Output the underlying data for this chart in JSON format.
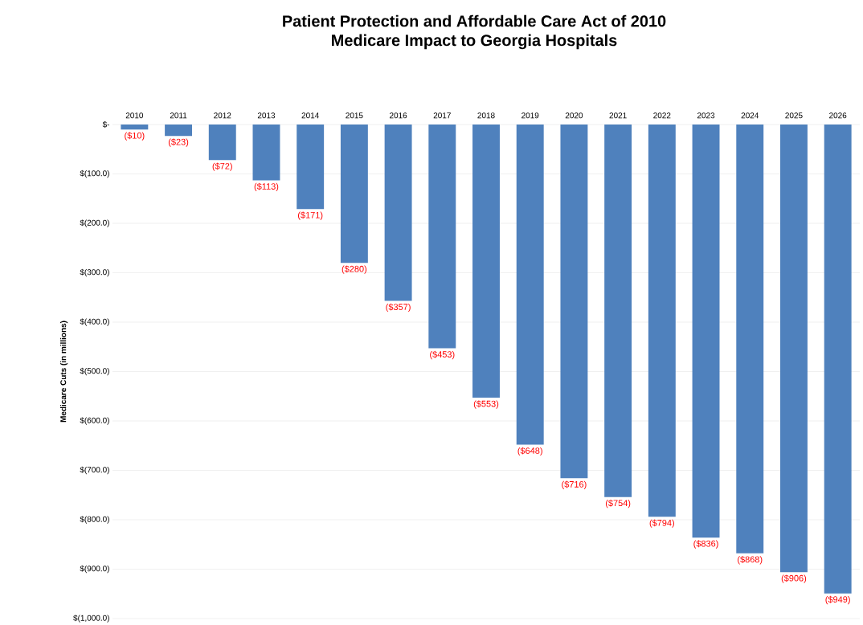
{
  "chart_data": {
    "type": "bar",
    "title": "Patient Protection and Affordable Care Act of 2010",
    "subtitle": "Medicare Impact to Georgia Hospitals",
    "ylabel": "Medicare Cuts (in millions)",
    "categories": [
      "2010",
      "2011",
      "2012",
      "2013",
      "2014",
      "2015",
      "2016",
      "2017",
      "2018",
      "2019",
      "2020",
      "2021",
      "2022",
      "2023",
      "2024",
      "2025",
      "2026"
    ],
    "values": [
      -10,
      -23,
      -72,
      -113,
      -171,
      -280,
      -357,
      -453,
      -553,
      -648,
      -716,
      -754,
      -794,
      -836,
      -868,
      -906,
      -949
    ],
    "value_labels": [
      "($10)",
      "($23)",
      "($72)",
      "($113)",
      "($171)",
      "($280)",
      "($357)",
      "($453)",
      "($553)",
      "($648)",
      "($716)",
      "($754)",
      "($794)",
      "($836)",
      "($868)",
      "($906)",
      "($949)"
    ],
    "color": "#4f81bd",
    "ylim": [
      -1000,
      0
    ],
    "yticks": [
      {
        "value": 0,
        "label": "$-"
      },
      {
        "value": -100,
        "label": "$(100.0)"
      },
      {
        "value": -200,
        "label": "$(200.0)"
      },
      {
        "value": -300,
        "label": "$(300.0)"
      },
      {
        "value": -400,
        "label": "$(400.0)"
      },
      {
        "value": -500,
        "label": "$(500.0)"
      },
      {
        "value": -600,
        "label": "$(600.0)"
      },
      {
        "value": -700,
        "label": "$(700.0)"
      },
      {
        "value": -800,
        "label": "$(800.0)"
      },
      {
        "value": -900,
        "label": "$(900.0)"
      },
      {
        "value": -1000,
        "label": "$(1,000.0)"
      }
    ],
    "grid": "y"
  }
}
